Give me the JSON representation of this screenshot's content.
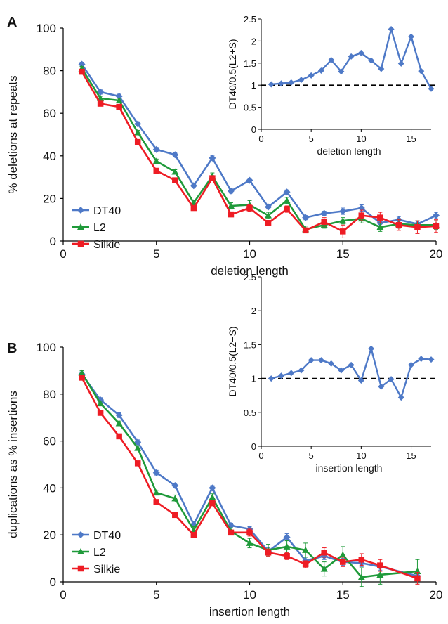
{
  "colors": {
    "DT40": "#4e79c7",
    "L2": "#1f9a3a",
    "Silkie": "#ee1c24",
    "axis": "#000000",
    "dashed": "#000000"
  },
  "chart_data": [
    {
      "id": "A",
      "type": "line",
      "panel_label": "A",
      "xlabel": "deletion length",
      "ylabel": "% deletions at repeats",
      "xlim": [
        0,
        20
      ],
      "ylim": [
        0,
        100
      ],
      "xticks": [
        0,
        5,
        10,
        15,
        20
      ],
      "yticks": [
        0,
        20,
        40,
        60,
        80,
        100
      ],
      "legend": "bottom-left",
      "series": [
        {
          "name": "DT40",
          "marker": "diamond",
          "x": [
            1,
            2,
            3,
            4,
            5,
            6,
            7,
            8,
            9,
            10,
            11,
            12,
            13,
            14,
            15,
            16,
            17,
            18,
            19,
            20
          ],
          "y": [
            83,
            70,
            68,
            55,
            43,
            40.5,
            26,
            39,
            23.5,
            28.5,
            16,
            23,
            11,
            13,
            14,
            15.5,
            8.5,
            10,
            8,
            12
          ],
          "err": [
            1,
            1,
            1,
            1,
            1,
            1,
            1,
            1,
            1,
            1,
            1,
            1,
            1,
            1,
            1.5,
            1.5,
            1.5,
            1.5,
            1.5,
            1.5
          ]
        },
        {
          "name": "L2",
          "marker": "triangle",
          "x": [
            1,
            2,
            3,
            4,
            5,
            6,
            7,
            8,
            9,
            10,
            11,
            12,
            13,
            14,
            15,
            16,
            17,
            18,
            19,
            20
          ],
          "y": [
            81,
            67,
            66,
            51,
            37.5,
            32.5,
            18,
            30.5,
            16.5,
            17,
            12,
            19,
            5.5,
            7.5,
            9.5,
            10.5,
            6.5,
            8,
            7.5,
            7.5
          ],
          "err": [
            1,
            1,
            1,
            1,
            1,
            1,
            1,
            1.5,
            1.5,
            2,
            1.5,
            1.5,
            1.5,
            1.5,
            1.5,
            2,
            2,
            2,
            2,
            2
          ]
        },
        {
          "name": "Silkie",
          "marker": "square",
          "x": [
            1,
            2,
            3,
            4,
            5,
            6,
            7,
            8,
            9,
            10,
            11,
            12,
            13,
            14,
            15,
            16,
            17,
            18,
            19,
            20
          ],
          "y": [
            79.5,
            64.5,
            63,
            46.5,
            33,
            28.5,
            15.5,
            29.5,
            12.5,
            15.5,
            8.5,
            15,
            5,
            9,
            4.5,
            12,
            11,
            7.5,
            6.5,
            7
          ],
          "err": [
            1,
            1,
            1,
            1,
            1,
            1,
            1,
            1,
            1,
            1.5,
            1,
            1.5,
            1,
            2,
            3,
            2.5,
            2.5,
            2.5,
            3,
            3
          ]
        }
      ],
      "inset": {
        "xlabel": "deletion length",
        "ylabel": "DT40/0.5(L2+S)",
        "xlim": [
          0,
          17
        ],
        "ylim": [
          0,
          2.5
        ],
        "xticks": [
          0,
          5,
          10,
          15
        ],
        "yticks": [
          0,
          0.5,
          1,
          1.5,
          2,
          2.5
        ],
        "reference_line": 1,
        "x": [
          1,
          2,
          3,
          4,
          5,
          6,
          7,
          8,
          9,
          10,
          11,
          12,
          13,
          14,
          15,
          16,
          17
        ],
        "y": [
          1.02,
          1.04,
          1.06,
          1.12,
          1.22,
          1.33,
          1.57,
          1.31,
          1.65,
          1.73,
          1.56,
          1.37,
          2.27,
          1.49,
          2.1,
          1.32,
          0.92
        ]
      }
    },
    {
      "id": "B",
      "type": "line",
      "panel_label": "B",
      "xlabel": "insertion length",
      "ylabel": "duplications as % insertions",
      "xlim": [
        0,
        20
      ],
      "ylim": [
        0,
        100
      ],
      "xticks": [
        0,
        5,
        10,
        15,
        20
      ],
      "yticks": [
        0,
        20,
        40,
        60,
        80,
        100
      ],
      "legend": "bottom-left",
      "series": [
        {
          "name": "DT40",
          "marker": "diamond",
          "x": [
            1,
            2,
            3,
            4,
            5,
            6,
            7,
            8,
            9,
            10,
            11,
            12,
            13,
            14,
            15,
            16,
            17,
            19
          ],
          "y": [
            88.5,
            77.5,
            71,
            59.5,
            46.5,
            41,
            24.5,
            40,
            24,
            22.5,
            13,
            19,
            9,
            11,
            8.5,
            8,
            6.5,
            2.5
          ],
          "err": [
            1,
            1,
            1,
            1,
            1,
            1,
            1,
            1,
            1,
            1,
            1.5,
            1.5,
            1.5,
            1.5,
            1.5,
            1.5,
            1.5,
            1.5
          ]
        },
        {
          "name": "L2",
          "marker": "triangle",
          "x": [
            1,
            2,
            3,
            4,
            5,
            6,
            7,
            8,
            9,
            10,
            11,
            12,
            13,
            14,
            15,
            16,
            17,
            19
          ],
          "y": [
            89,
            76,
            67.5,
            57,
            38,
            35.5,
            22,
            36,
            21.5,
            16.5,
            13.5,
            15,
            13.5,
            5.5,
            11.5,
            2,
            3,
            4.5
          ],
          "err": [
            1,
            1,
            1,
            1,
            1,
            1.5,
            1.5,
            1.5,
            1.5,
            2,
            2.5,
            2.5,
            3,
            3,
            3.5,
            4,
            4,
            5
          ]
        },
        {
          "name": "Silkie",
          "marker": "square",
          "x": [
            1,
            2,
            3,
            4,
            5,
            6,
            7,
            8,
            9,
            10,
            11,
            12,
            13,
            14,
            15,
            16,
            17,
            19
          ],
          "y": [
            87,
            72,
            62,
            50.5,
            34,
            28.5,
            20,
            33.5,
            21,
            21,
            12.5,
            11,
            7.5,
            12.5,
            8.5,
            9.5,
            7,
            1.5
          ],
          "err": [
            1,
            1,
            1,
            1,
            1,
            1,
            1,
            1,
            1,
            1.5,
            1.5,
            1.5,
            1.5,
            2,
            2,
            2.5,
            2.5,
            2.5
          ]
        }
      ],
      "inset": {
        "xlabel": "insertion length",
        "ylabel": "DT40/0.5(L2+S)",
        "xlim": [
          0,
          17
        ],
        "ylim": [
          0,
          2.5
        ],
        "xticks": [
          0,
          5,
          10,
          15
        ],
        "yticks": [
          0,
          0.5,
          1,
          1.5,
          2,
          2.5
        ],
        "reference_line": 1,
        "x": [
          1,
          2,
          3,
          4,
          5,
          6,
          7,
          8,
          9,
          10,
          11,
          12,
          13,
          14,
          15,
          16,
          17
        ],
        "y": [
          1.0,
          1.04,
          1.08,
          1.12,
          1.27,
          1.27,
          1.22,
          1.12,
          1.2,
          0.97,
          1.44,
          0.88,
          0.99,
          0.72,
          1.2,
          1.29,
          1.28
        ]
      }
    }
  ]
}
